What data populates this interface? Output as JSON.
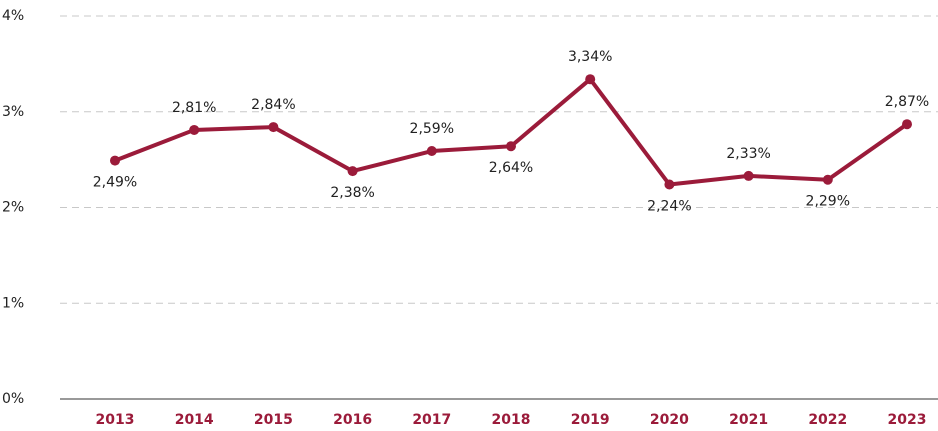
{
  "chart_data": {
    "type": "line",
    "categories": [
      "2013",
      "2014",
      "2015",
      "2016",
      "2017",
      "2018",
      "2019",
      "2020",
      "2021",
      "2022",
      "2023"
    ],
    "series": [
      {
        "color": "#9b1b3a",
        "values": [
          2.49,
          2.81,
          2.84,
          2.38,
          2.59,
          2.64,
          3.34,
          2.24,
          2.33,
          2.29,
          2.87
        ],
        "value_labels": [
          "2,49%",
          "2,81%",
          "2,84%",
          "2,38%",
          "2,59%",
          "2,64%",
          "3,34%",
          "2,24%",
          "2,33%",
          "2,29%",
          "2,87%"
        ]
      }
    ],
    "ylim": [
      0,
      4
    ],
    "yticks": [
      {
        "value": 0,
        "label": "0%"
      },
      {
        "value": 1,
        "label": "1%"
      },
      {
        "value": 2,
        "label": "2%"
      },
      {
        "value": 3,
        "label": "3%"
      },
      {
        "value": 4,
        "label": "4%"
      }
    ],
    "grid": true
  }
}
